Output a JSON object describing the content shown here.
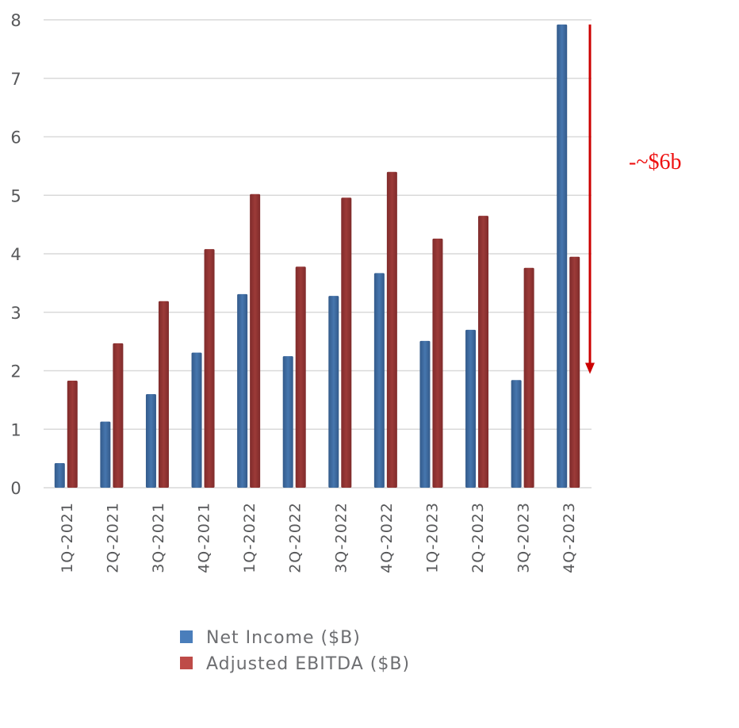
{
  "chart_data": {
    "type": "bar",
    "title": "",
    "xlabel": "",
    "ylabel": "",
    "ylim": [
      0,
      8
    ],
    "yticks": [
      0,
      1,
      2,
      3,
      4,
      5,
      6,
      7,
      8
    ],
    "ytick_labels": [
      "0",
      "1",
      "2",
      "3",
      "4",
      "5",
      "6",
      "7",
      "8"
    ],
    "grid": true,
    "legend_position": "bottom-center",
    "categories": [
      "1Q-2021",
      "2Q-2021",
      "3Q-2021",
      "4Q-2021",
      "1Q-2022",
      "2Q-2022",
      "3Q-2022",
      "4Q-2022",
      "1Q-2023",
      "2Q-2023",
      "3Q-2023",
      "4Q-2023"
    ],
    "series": [
      {
        "name": "Net Income ($B)",
        "color": "#3e6aa0",
        "legend_color": "#4a7ebb",
        "values": [
          0.42,
          1.13,
          1.6,
          2.31,
          3.31,
          2.25,
          3.28,
          3.67,
          2.51,
          2.7,
          1.84,
          7.92
        ]
      },
      {
        "name": "Adjusted EBITDA ($B)",
        "color": "#933535",
        "legend_color": "#be4b48",
        "values": [
          1.83,
          2.47,
          3.19,
          4.08,
          5.02,
          3.78,
          4.96,
          5.4,
          4.26,
          4.65,
          3.76,
          3.95
        ]
      }
    ],
    "annotations": [
      {
        "type": "arrow",
        "text": "-~$6b",
        "from_value": 7.92,
        "to_value": 2.0,
        "color": "#cc0000",
        "text_color": "#ee1111"
      }
    ]
  }
}
